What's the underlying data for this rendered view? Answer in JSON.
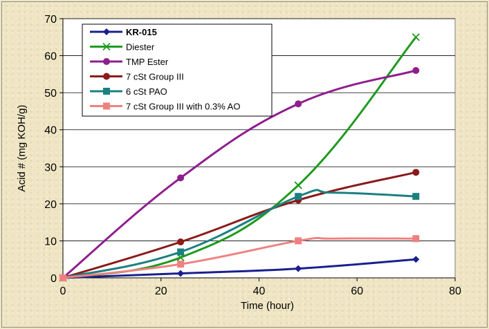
{
  "chart_data": {
    "type": "line",
    "xlabel": "Time (hour)",
    "ylabel": "Acid # (mg KOH/g)",
    "xlim": [
      0,
      80
    ],
    "ylim": [
      0,
      70
    ],
    "xticks": [
      "0",
      "20",
      "40",
      "60",
      "80"
    ],
    "yticks": [
      "0",
      "10",
      "20",
      "30",
      "40",
      "50",
      "60",
      "70"
    ],
    "grid": "horizontal",
    "legend_position": "top-left",
    "series": [
      {
        "name": "KR-015",
        "color": "#1a1f8f",
        "marker": "diamond",
        "bold": true,
        "points": [
          [
            0,
            0
          ],
          [
            24,
            1.2
          ],
          [
            48,
            2.5
          ],
          [
            72,
            5
          ]
        ]
      },
      {
        "name": "Diester",
        "color": "#1f9a1f",
        "marker": "x",
        "points": [
          [
            0,
            0
          ],
          [
            24,
            5.5
          ],
          [
            48,
            25
          ],
          [
            72,
            65
          ]
        ]
      },
      {
        "name": "TMP Ester",
        "color": "#8e1e8e",
        "marker": "circle",
        "points": [
          [
            0,
            0
          ],
          [
            24,
            27
          ],
          [
            48,
            47
          ],
          [
            72,
            56
          ]
        ]
      },
      {
        "name": "7 cSt Group III",
        "color": "#8b1a1a",
        "marker": "circle",
        "points": [
          [
            0,
            0
          ],
          [
            24,
            9.7
          ],
          [
            48,
            21
          ],
          [
            72,
            28.5
          ]
        ]
      },
      {
        "name": "6 cSt PAO",
        "color": "#1b8080",
        "marker": "square",
        "points": [
          [
            0,
            0
          ],
          [
            24,
            7
          ],
          [
            48,
            22
          ],
          [
            55,
            23
          ],
          [
            72,
            22
          ]
        ]
      },
      {
        "name": "7 cSt Group III with 0.3% AO",
        "color": "#f08080",
        "marker": "square",
        "points": [
          [
            0,
            0
          ],
          [
            24,
            3.7
          ],
          [
            48,
            10
          ],
          [
            55,
            10.6
          ],
          [
            72,
            10.6
          ]
        ]
      }
    ]
  }
}
